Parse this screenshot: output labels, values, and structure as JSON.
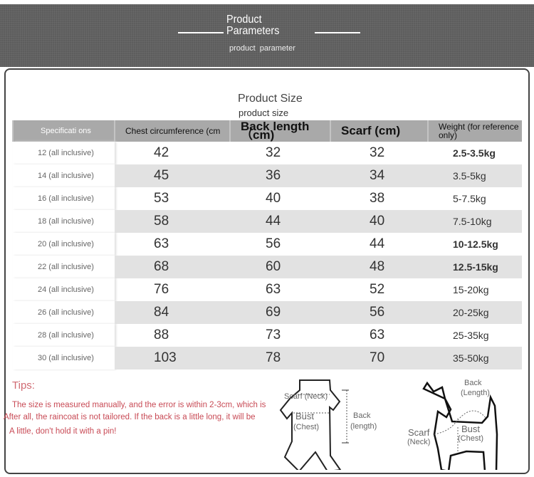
{
  "banner": {
    "title_line1": "Product",
    "title_line2": "Parameters",
    "subtitle": "product  parameter"
  },
  "section": {
    "title": "Product Size",
    "subtitle": "product  size"
  },
  "table": {
    "headers": [
      "Specificati ons",
      "Chest circumference (cm",
      "Back length（cm)",
      "Scarf (cm)",
      "Weight (for reference only)"
    ],
    "rows": [
      [
        "12 (all inclusive)",
        "42",
        "32",
        "32",
        "2.5-3.5kg"
      ],
      [
        "14 (all inclusive)",
        "45",
        "36",
        "34",
        "3.5-5kg"
      ],
      [
        "16 (all inclusive)",
        "53",
        "40",
        "38",
        "5-7.5kg"
      ],
      [
        "18 (all inclusive)",
        "58",
        "44",
        "40",
        "7.5-10kg"
      ],
      [
        "20 (all inclusive)",
        "63",
        "56",
        "44",
        "10-12.5kg"
      ],
      [
        "22 (all inclusive)",
        "68",
        "60",
        "48",
        "12.5-15kg"
      ],
      [
        "24 (all inclusive)",
        "76",
        "63",
        "52",
        "15-20kg"
      ],
      [
        "26 (all inclusive)",
        "84",
        "69",
        "56",
        "20-25kg"
      ],
      [
        "28 (all inclusive)",
        "88",
        "73",
        "63",
        "25-35kg"
      ],
      [
        "30 (all inclusive)",
        "103",
        "78",
        "70",
        "35-50kg"
      ]
    ]
  },
  "tips": {
    "title": "Tips:",
    "lines": [
      "The size is measured manually, and the error is within 2-3cm, which is",
      "After all, the raincoat is not tailored. If the back is a little long, it will be",
      "A little, don't hold it with a pin!"
    ]
  },
  "diagram_clothes": {
    "scarf": "Scarf (Neck)",
    "bust": "Bust",
    "chest": "(Chest)",
    "back": "Back",
    "length": "(length)"
  },
  "diagram_dog": {
    "back": "Back",
    "length": "(Length)",
    "scarf": "Scarf",
    "neck": "(Neck)",
    "bust": "Bust",
    "chest": "(Chest)"
  },
  "colors": {
    "banner": "#5d5d5d",
    "header": "#a9a9a9",
    "tips": "#c84a55"
  }
}
